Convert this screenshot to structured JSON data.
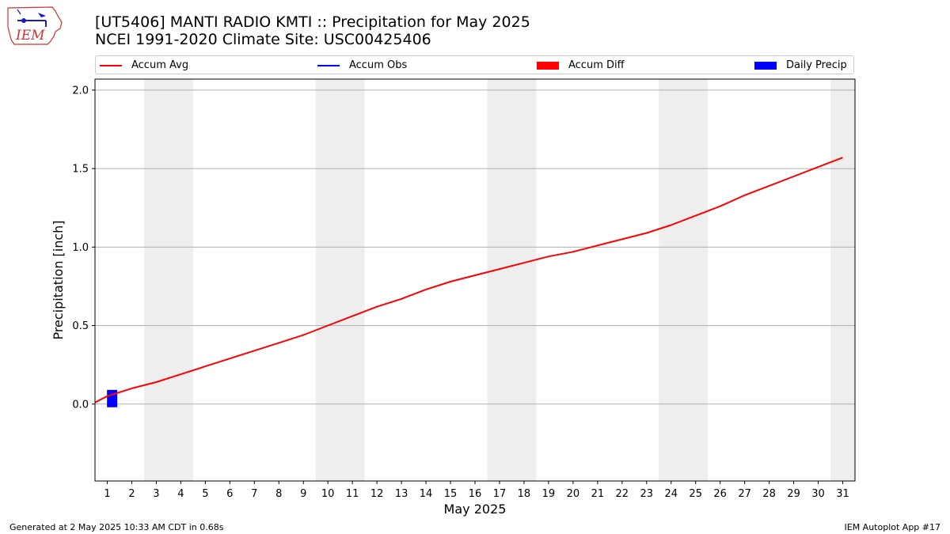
{
  "logo": {
    "text": "IEM"
  },
  "header": {
    "title": "[UT5406] MANTI RADIO KMTI :: Precipitation for May 2025",
    "subtitle": "NCEI 1991-2020 Climate Site: USC00425406"
  },
  "legend": {
    "items": [
      {
        "label": "Accum Avg",
        "kind": "line",
        "color": "#ff0000"
      },
      {
        "label": "Accum Obs",
        "kind": "line",
        "color": "#0000ff"
      },
      {
        "label": "Accum Diff",
        "kind": "patch",
        "color": "#ff0000"
      },
      {
        "label": "Daily Precip",
        "kind": "patch",
        "color": "#0000ff"
      }
    ]
  },
  "footer": {
    "generated": "Generated at 2 May 2025 10:33 AM CDT in 0.68s",
    "app": "IEM Autoplot App #17"
  },
  "chart_data": {
    "type": "line",
    "xlabel": "May 2025",
    "ylabel": "Precipitation [inch]",
    "xlim": [
      0.5,
      31.5
    ],
    "ylim": [
      -0.49,
      2.07
    ],
    "yticks": [
      0.0,
      0.5,
      1.0,
      1.5,
      2.0
    ],
    "ytick_labels": [
      "0.0",
      "0.5",
      "1.0",
      "1.5",
      "2.0"
    ],
    "xticks": [
      1,
      2,
      3,
      4,
      5,
      6,
      7,
      8,
      9,
      10,
      11,
      12,
      13,
      14,
      15,
      16,
      17,
      18,
      19,
      20,
      21,
      22,
      23,
      24,
      25,
      26,
      27,
      28,
      29,
      30,
      31
    ],
    "grid": "horizontal",
    "weekend_shading": [
      [
        2.5,
        4.5
      ],
      [
        9.5,
        11.5
      ],
      [
        16.5,
        18.5
      ],
      [
        23.5,
        25.5
      ],
      [
        30.5,
        31.5
      ]
    ],
    "shade_color": "#eeeeee",
    "series": [
      {
        "name": "Accum Avg",
        "color": "#ff0000",
        "x": [
          0.5,
          1,
          2,
          3,
          4,
          5,
          6,
          7,
          8,
          9,
          10,
          11,
          12,
          13,
          14,
          15,
          16,
          17,
          18,
          19,
          20,
          21,
          22,
          23,
          24,
          25,
          26,
          27,
          28,
          29,
          30,
          31
        ],
        "values": [
          0.01,
          0.05,
          0.1,
          0.14,
          0.19,
          0.24,
          0.29,
          0.34,
          0.39,
          0.44,
          0.5,
          0.56,
          0.62,
          0.67,
          0.73,
          0.78,
          0.82,
          0.86,
          0.9,
          0.94,
          0.97,
          1.01,
          1.05,
          1.09,
          1.14,
          1.2,
          1.26,
          1.33,
          1.39,
          1.45,
          1.51,
          1.57
        ]
      }
    ],
    "bars": [
      {
        "name": "Daily Precip",
        "color": "#0000ff",
        "x": [
          1.2
        ],
        "values": [
          0.07
        ]
      }
    ]
  }
}
